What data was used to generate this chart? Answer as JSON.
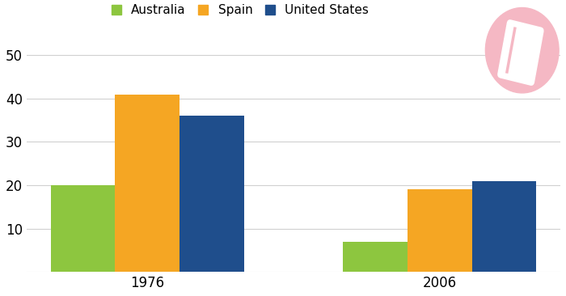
{
  "years": [
    "1976",
    "2006"
  ],
  "countries": [
    "Australia",
    "Spain",
    "United States"
  ],
  "values": {
    "Australia": [
      20,
      7
    ],
    "Spain": [
      41,
      19
    ],
    "United States": [
      36,
      21
    ]
  },
  "colors": {
    "Australia": "#8dc63f",
    "Spain": "#f5a623",
    "United States": "#1f4e8c"
  },
  "ylim": [
    0,
    55
  ],
  "yticks": [
    0,
    10,
    20,
    30,
    40,
    50
  ],
  "bar_width": 0.22,
  "background_color": "#ffffff",
  "grid_color": "#d0d0d0",
  "watermark_color": "#f5b8c4",
  "watermark_icon_color": "#ffffff",
  "legend_fontsize": 11,
  "tick_fontsize": 12,
  "figsize": [
    7.0,
    3.66
  ],
  "dpi": 100
}
